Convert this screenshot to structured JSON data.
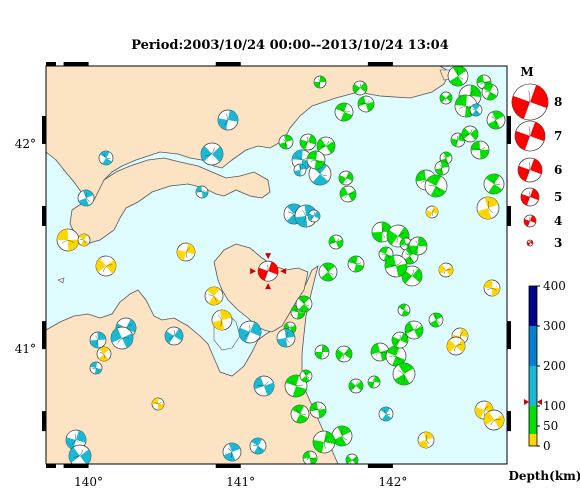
{
  "title": "Period:2003/10/24 00:00--2013/10/24 13:04",
  "map": {
    "lat_ticks": [
      {
        "value": 42,
        "label": "42°"
      },
      {
        "value": 41,
        "label": "41°"
      }
    ],
    "lon_ticks": [
      {
        "value": 140,
        "label": "140°"
      },
      {
        "value": 141,
        "label": "141°"
      },
      {
        "value": 142,
        "label": "142°"
      }
    ],
    "lon_range": [
      139.72,
      142.75
    ],
    "lat_range": [
      40.44,
      42.38
    ],
    "colors": {
      "sea": "#dffcff",
      "land": "#fbe3c4",
      "coast": "#555555"
    }
  },
  "legend_magnitude": {
    "title": "M",
    "items": [
      {
        "label": "8",
        "value": 8
      },
      {
        "label": "7",
        "value": 7
      },
      {
        "label": "6",
        "value": 6
      },
      {
        "label": "5",
        "value": 5
      },
      {
        "label": "4",
        "value": 4
      },
      {
        "label": "3",
        "value": 3
      }
    ],
    "color": "#ff0000"
  },
  "legend_depth": {
    "title": "Depth(km)",
    "ticks": [
      {
        "label": "400",
        "value": 400
      },
      {
        "label": "300",
        "value": 300
      },
      {
        "label": "200",
        "value": 200
      },
      {
        "label": "100",
        "value": 100
      },
      {
        "label": "50",
        "value": 50
      },
      {
        "label": "0",
        "value": 0
      }
    ],
    "bands": [
      {
        "from": 0,
        "to": 30,
        "color": "#ffd700"
      },
      {
        "from": 30,
        "to": 100,
        "color": "#00e000"
      },
      {
        "from": 100,
        "to": 200,
        "color": "#1ab8d2"
      },
      {
        "from": 200,
        "to": 300,
        "color": "#0080d0"
      },
      {
        "from": 300,
        "to": 400,
        "color": "#000090"
      }
    ],
    "marker_depth": 110
  },
  "mainshock": {
    "lon": 141.18,
    "lat": 41.38,
    "mag": 6.4,
    "color": "#ff0000"
  }
}
